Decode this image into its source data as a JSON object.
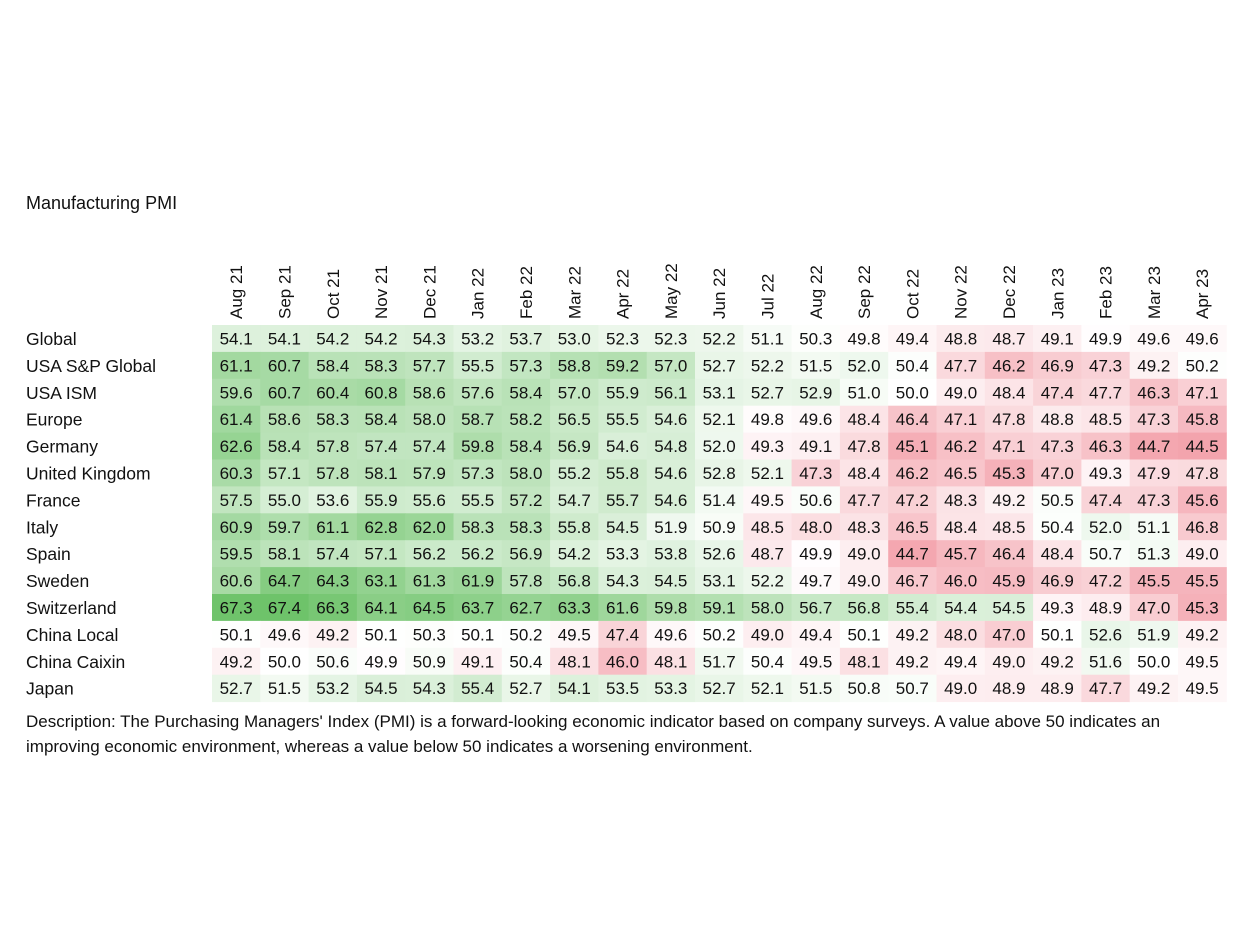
{
  "chart_data": {
    "type": "heatmap",
    "title": "Manufacturing PMI",
    "columns": [
      "Aug 21",
      "Sep 21",
      "Oct 21",
      "Nov 21",
      "Dec 21",
      "Jan 22",
      "Feb 22",
      "Mar 22",
      "Apr 22",
      "May 22",
      "Jun 22",
      "Jul 22",
      "Aug 22",
      "Sep 22",
      "Oct 22",
      "Nov 22",
      "Dec 22",
      "Jan 23",
      "Feb 23",
      "Mar 23",
      "Apr 23"
    ],
    "rows": [
      {
        "label": "Global",
        "values": [
          54.1,
          54.1,
          54.2,
          54.2,
          54.3,
          53.2,
          53.7,
          53.0,
          52.3,
          52.3,
          52.2,
          51.1,
          50.3,
          49.8,
          49.4,
          48.8,
          48.7,
          49.1,
          49.9,
          49.6,
          49.6
        ]
      },
      {
        "label": "USA S&P Global",
        "values": [
          61.1,
          60.7,
          58.4,
          58.3,
          57.7,
          55.5,
          57.3,
          58.8,
          59.2,
          57.0,
          52.7,
          52.2,
          51.5,
          52.0,
          50.4,
          47.7,
          46.2,
          46.9,
          47.3,
          49.2,
          50.2
        ]
      },
      {
        "label": "USA ISM",
        "values": [
          59.6,
          60.7,
          60.4,
          60.8,
          58.6,
          57.6,
          58.4,
          57.0,
          55.9,
          56.1,
          53.1,
          52.7,
          52.9,
          51.0,
          50.0,
          49.0,
          48.4,
          47.4,
          47.7,
          46.3,
          47.1
        ]
      },
      {
        "label": "Europe",
        "values": [
          61.4,
          58.6,
          58.3,
          58.4,
          58.0,
          58.7,
          58.2,
          56.5,
          55.5,
          54.6,
          52.1,
          49.8,
          49.6,
          48.4,
          46.4,
          47.1,
          47.8,
          48.8,
          48.5,
          47.3,
          45.8
        ]
      },
      {
        "label": "Germany",
        "values": [
          62.6,
          58.4,
          57.8,
          57.4,
          57.4,
          59.8,
          58.4,
          56.9,
          54.6,
          54.8,
          52.0,
          49.3,
          49.1,
          47.8,
          45.1,
          46.2,
          47.1,
          47.3,
          46.3,
          44.7,
          44.5
        ]
      },
      {
        "label": "United Kingdom",
        "values": [
          60.3,
          57.1,
          57.8,
          58.1,
          57.9,
          57.3,
          58.0,
          55.2,
          55.8,
          54.6,
          52.8,
          52.1,
          47.3,
          48.4,
          46.2,
          46.5,
          45.3,
          47.0,
          49.3,
          47.9,
          47.8
        ]
      },
      {
        "label": "France",
        "values": [
          57.5,
          55.0,
          53.6,
          55.9,
          55.6,
          55.5,
          57.2,
          54.7,
          55.7,
          54.6,
          51.4,
          49.5,
          50.6,
          47.7,
          47.2,
          48.3,
          49.2,
          50.5,
          47.4,
          47.3,
          45.6
        ]
      },
      {
        "label": "Italy",
        "values": [
          60.9,
          59.7,
          61.1,
          62.8,
          62.0,
          58.3,
          58.3,
          55.8,
          54.5,
          51.9,
          50.9,
          48.5,
          48.0,
          48.3,
          46.5,
          48.4,
          48.5,
          50.4,
          52.0,
          51.1,
          46.8
        ]
      },
      {
        "label": "Spain",
        "values": [
          59.5,
          58.1,
          57.4,
          57.1,
          56.2,
          56.2,
          56.9,
          54.2,
          53.3,
          53.8,
          52.6,
          48.7,
          49.9,
          49.0,
          44.7,
          45.7,
          46.4,
          48.4,
          50.7,
          51.3,
          49.0
        ]
      },
      {
        "label": "Sweden",
        "values": [
          60.6,
          64.7,
          64.3,
          63.1,
          61.3,
          61.9,
          57.8,
          56.8,
          54.3,
          54.5,
          53.1,
          52.2,
          49.7,
          49.0,
          46.7,
          46.0,
          45.9,
          46.9,
          47.2,
          45.5,
          45.5
        ]
      },
      {
        "label": "Switzerland",
        "values": [
          67.3,
          67.4,
          66.3,
          64.1,
          64.5,
          63.7,
          62.7,
          63.3,
          61.6,
          59.8,
          59.1,
          58.0,
          56.7,
          56.8,
          55.4,
          54.4,
          54.5,
          49.3,
          48.9,
          47.0,
          45.3
        ]
      },
      {
        "label": "China Local",
        "values": [
          50.1,
          49.6,
          49.2,
          50.1,
          50.3,
          50.1,
          50.2,
          49.5,
          47.4,
          49.6,
          50.2,
          49.0,
          49.4,
          50.1,
          49.2,
          48.0,
          47.0,
          50.1,
          52.6,
          51.9,
          49.2
        ]
      },
      {
        "label": "China Caixin",
        "values": [
          49.2,
          50.0,
          50.6,
          49.9,
          50.9,
          49.1,
          50.4,
          48.1,
          46.0,
          48.1,
          51.7,
          50.4,
          49.5,
          48.1,
          49.2,
          49.4,
          49.0,
          49.2,
          51.6,
          50.0,
          49.5
        ]
      },
      {
        "label": "Japan",
        "values": [
          52.7,
          51.5,
          53.2,
          54.5,
          54.3,
          55.4,
          52.7,
          54.1,
          53.5,
          53.3,
          52.7,
          52.1,
          51.5,
          50.8,
          50.7,
          49.0,
          48.9,
          48.9,
          47.7,
          49.2,
          49.5
        ]
      }
    ],
    "colors": {
      "low": "#f08a96",
      "neutral": "#ffffff",
      "high": "#4fb64a"
    },
    "value_format": "1 decimal"
  },
  "description": "Description: The Purchasing Managers' Index (PMI) is a forward-looking economic indicator based on company surveys. A value above 50 indicates an improving economic environment, whereas a value below 50 indicates a worsening environment."
}
